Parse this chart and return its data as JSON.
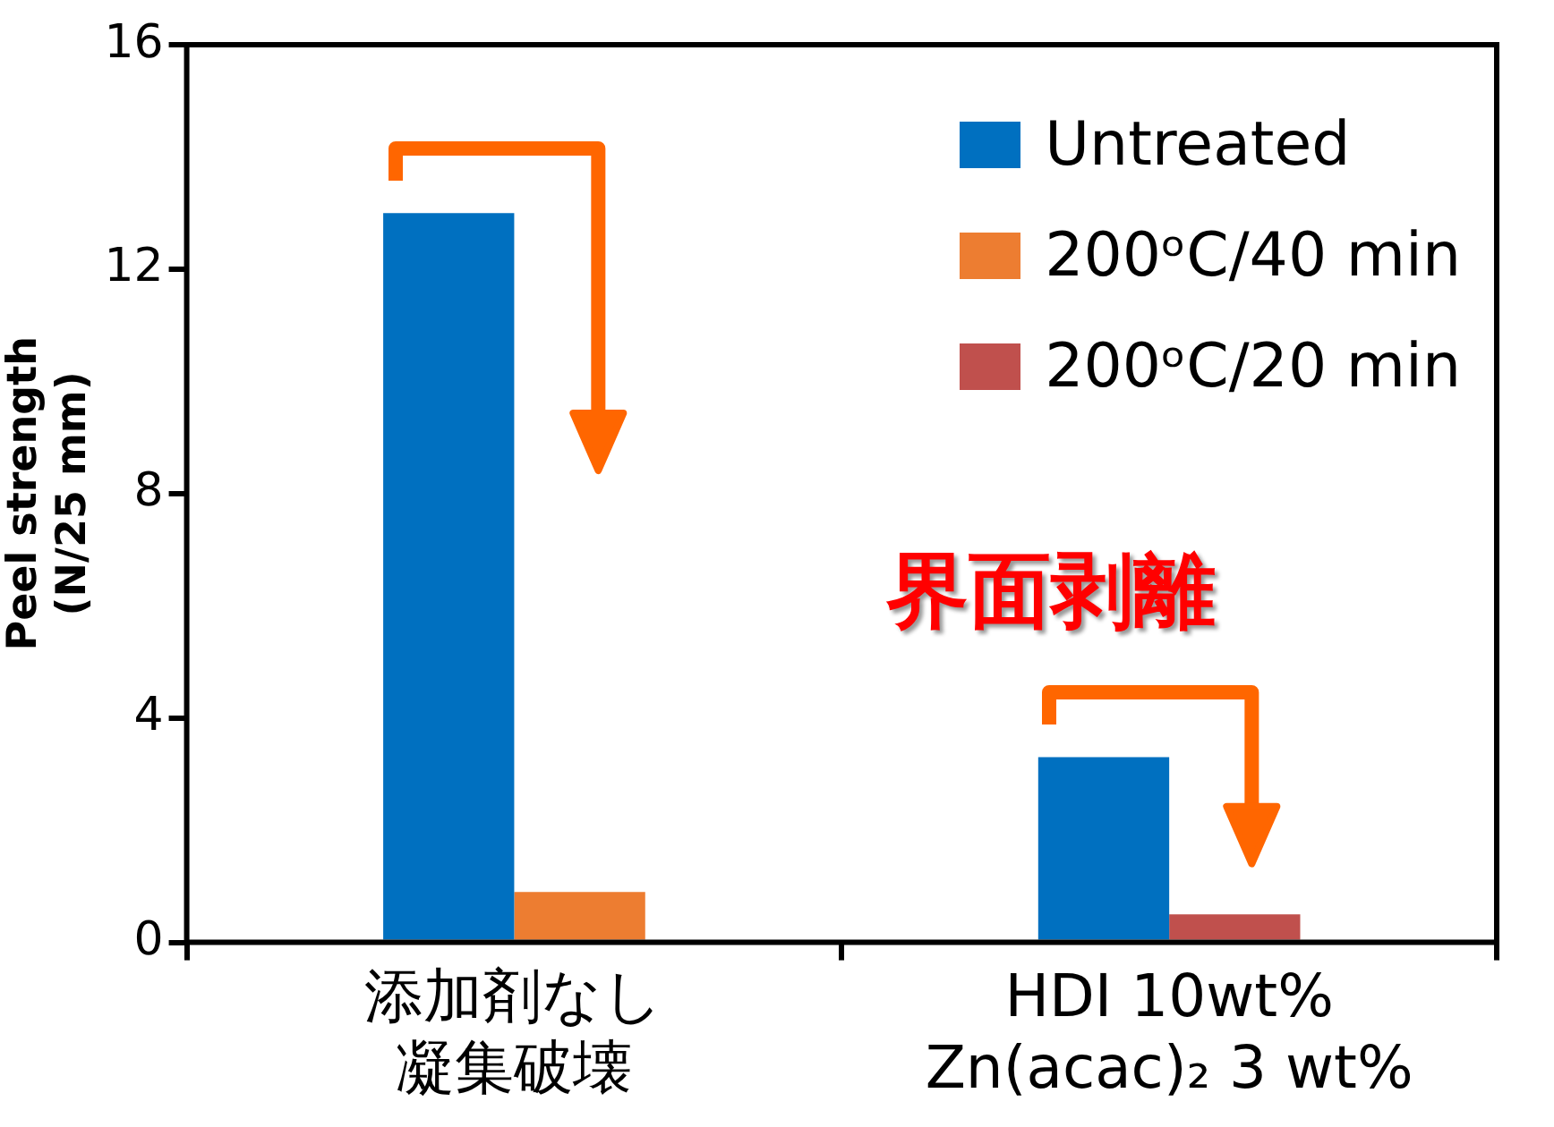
{
  "chart_data": {
    "type": "bar",
    "ylabel": "Peel strength\n(N/25 mm)",
    "categories": [
      "添加剤なし凝集破壊",
      "HDI 10wt%\nZn(acac)₂ 3 wt%"
    ],
    "series": [
      {
        "name": "Untreated",
        "color": "#0070c0",
        "values": [
          13.0,
          3.3
        ]
      },
      {
        "name": "200ᵒC/40 min",
        "color": "#ed7d31",
        "values": [
          0.9,
          null
        ]
      },
      {
        "name": "200ᵒC/20 min",
        "color": "#c0504d",
        "values": [
          null,
          0.5
        ]
      }
    ],
    "ylim": [
      0,
      16
    ],
    "yticks": [
      0,
      4,
      8,
      12,
      16
    ],
    "grid": false,
    "legend": "top right",
    "annotations": [
      "界面剥離"
    ]
  }
}
